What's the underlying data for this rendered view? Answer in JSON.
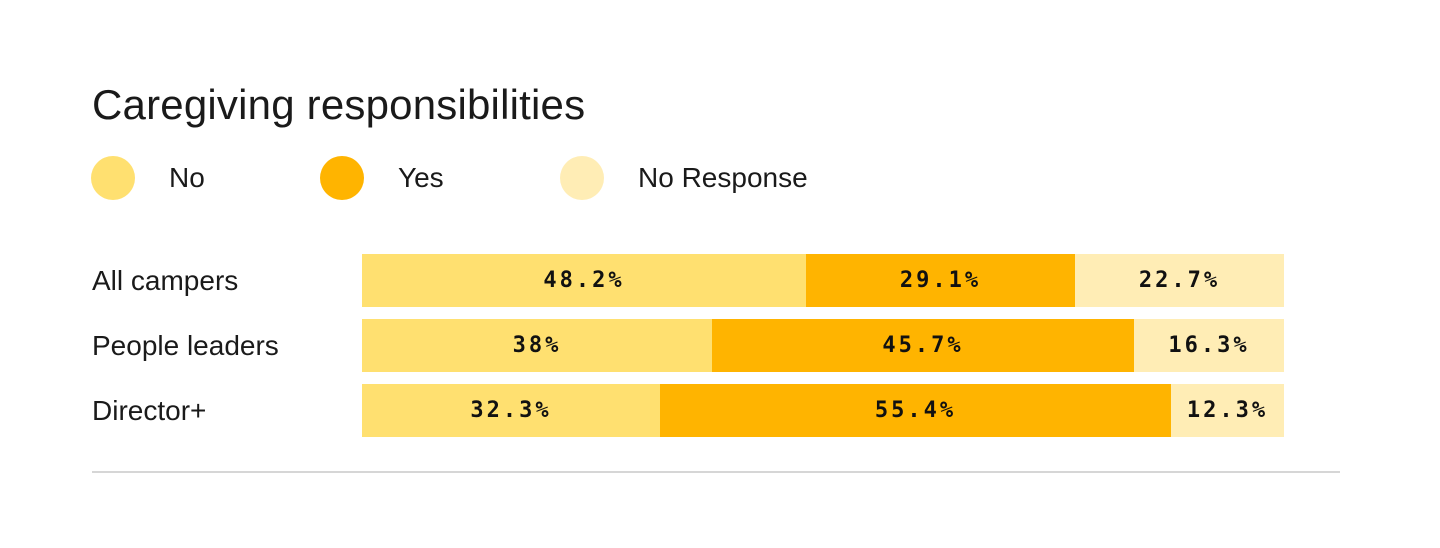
{
  "chart_data": {
    "type": "bar",
    "orientation": "horizontal",
    "stacked": true,
    "title": "Caregiving responsibilities",
    "categories": [
      "All campers",
      "People leaders",
      "Director+"
    ],
    "series": [
      {
        "name": "No",
        "color": "#FFE070",
        "values": [
          48.2,
          38,
          32.3
        ],
        "labels": [
          "48.2%",
          "38%",
          "32.3%"
        ]
      },
      {
        "name": "Yes",
        "color": "#FFB400",
        "values": [
          29.1,
          45.7,
          55.4
        ],
        "labels": [
          "29.1%",
          "45.7%",
          "55.4%"
        ]
      },
      {
        "name": "No Response",
        "color": "#FFEDB5",
        "values": [
          22.7,
          16.3,
          12.3
        ],
        "labels": [
          "22.7%",
          "16.3%",
          "12.3%"
        ]
      }
    ],
    "xlim": [
      0,
      100
    ],
    "legend_position": "top-left",
    "grid": false
  }
}
